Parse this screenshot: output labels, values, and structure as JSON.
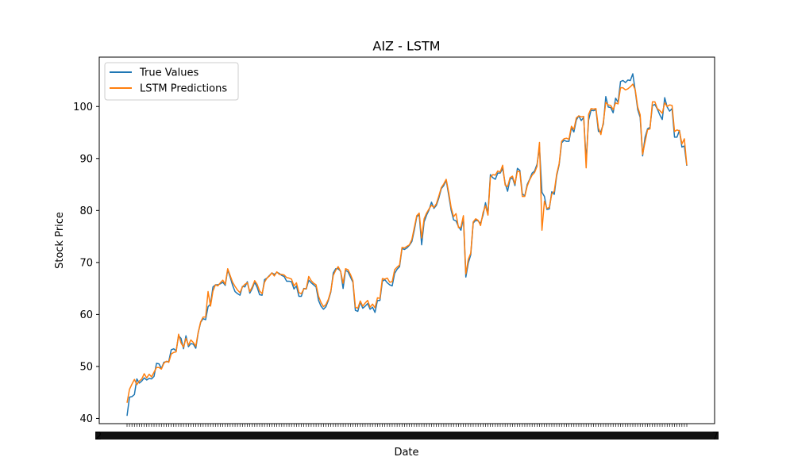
{
  "chart_data": {
    "type": "line",
    "title": "AIZ - LSTM",
    "xlabel": "Date",
    "ylabel": "Stock Price",
    "ylim": [
      39,
      109.5
    ],
    "yticks": [
      40,
      50,
      60,
      70,
      80,
      90,
      100
    ],
    "x_tick_labels_note": "Dense overlapping date tick labels",
    "x_first_tick": "2",
    "x_last_tick": "7",
    "legend": {
      "placement": "upper left",
      "entries": [
        "True Values",
        "LSTM Predictions"
      ]
    },
    "grid": false,
    "series": [
      {
        "name": "True Values",
        "color": "#1f77b4",
        "values": [
          40.5,
          44.1,
          44.2,
          44.6,
          47.6,
          46.8,
          47.2,
          47.8,
          47.4,
          47.7,
          47.6,
          48.1,
          50.6,
          50.5,
          49.6,
          50.8,
          50.9,
          51.0,
          53.2,
          53.4,
          53.0,
          55.9,
          55.4,
          53.4,
          55.9,
          53.8,
          54.4,
          54.3,
          53.5,
          56.5,
          58.5,
          59.2,
          59.0,
          61.5,
          62.0,
          65.3,
          65.7,
          65.7,
          65.9,
          66.2,
          65.6,
          68.6,
          67.2,
          65.6,
          64.4,
          64.0,
          63.7,
          65.4,
          65.3,
          66.3,
          64.1,
          65.0,
          66.2,
          65.2,
          63.8,
          63.7,
          66.7,
          67.0,
          67.5,
          68.0,
          67.7,
          68.1,
          67.9,
          67.5,
          67.3,
          66.4,
          66.4,
          66.3,
          64.9,
          65.5,
          63.5,
          63.5,
          65.0,
          64.9,
          66.6,
          66.1,
          65.7,
          65.3,
          62.7,
          61.6,
          61.0,
          61.5,
          62.7,
          64.3,
          68.0,
          68.8,
          68.8,
          68.3,
          65.0,
          68.5,
          68.2,
          67.2,
          66.2,
          60.8,
          60.6,
          62.4,
          61.2,
          61.6,
          62.1,
          61.0,
          61.4,
          60.4,
          62.7,
          62.7,
          66.4,
          66.7,
          66.1,
          65.7,
          65.5,
          67.9,
          68.7,
          69.2,
          72.7,
          72.5,
          72.8,
          73.3,
          74.0,
          76.2,
          78.8,
          79.2,
          73.4,
          77.8,
          79.1,
          80.1,
          81.6,
          80.4,
          81.0,
          82.4,
          84.2,
          84.8,
          85.8,
          83.0,
          80.1,
          78.2,
          78.0,
          76.9,
          76.2,
          78.6,
          67.2,
          69.9,
          71.5,
          77.6,
          78.1,
          78.0,
          77.5,
          79.1,
          81.5,
          79.3,
          86.9,
          86.3,
          86.0,
          87.2,
          87.2,
          88.1,
          85.2,
          83.7,
          86.0,
          86.3,
          84.8,
          88.1,
          87.7,
          83.2,
          82.8,
          85.0,
          86.0,
          87.2,
          87.6,
          88.9,
          92.1,
          83.5,
          82.7,
          80.2,
          80.3,
          83.6,
          83.1,
          86.7,
          88.8,
          93.0,
          93.5,
          93.3,
          93.3,
          95.9,
          95.1,
          97.4,
          98.2,
          97.3,
          97.9,
          89.6,
          97.4,
          99.3,
          99.2,
          99.4,
          95.2,
          95.2,
          96.6,
          101.9,
          99.9,
          99.8,
          98.8,
          101.6,
          100.8,
          104.8,
          105.0,
          104.6,
          105.1,
          105.0,
          106.3,
          103.0,
          99.4,
          97.9,
          90.5,
          94.1,
          95.7,
          96.0,
          100.2,
          100.4,
          99.5,
          98.4,
          97.5,
          101.7,
          99.9,
          99.1,
          99.6,
          94.1,
          94.1,
          95.4,
          92.2,
          92.4,
          88.6
        ]
      },
      {
        "name": "LSTM Predictions",
        "color": "#ff7f0e",
        "values": [
          43.0,
          45.6,
          46.6,
          47.5,
          46.5,
          47.2,
          47.6,
          48.6,
          47.8,
          48.5,
          48.0,
          48.9,
          49.8,
          49.8,
          49.5,
          50.6,
          51.0,
          50.8,
          52.4,
          52.7,
          52.8,
          56.2,
          54.5,
          53.7,
          55.4,
          54.1,
          55.1,
          54.6,
          53.9,
          56.6,
          58.6,
          59.5,
          59.5,
          64.4,
          61.6,
          64.5,
          65.7,
          65.5,
          66.1,
          66.6,
          65.8,
          68.8,
          67.5,
          66.2,
          65.4,
          64.7,
          64.2,
          65.3,
          65.8,
          66.1,
          64.4,
          65.3,
          66.5,
          65.8,
          64.5,
          64.0,
          66.2,
          67.0,
          67.4,
          68.0,
          67.4,
          68.2,
          67.7,
          67.7,
          67.6,
          67.1,
          67.0,
          66.8,
          65.5,
          66.1,
          64.2,
          64.0,
          64.9,
          65.0,
          67.3,
          66.5,
          66.0,
          65.7,
          63.5,
          62.3,
          61.5,
          61.9,
          62.9,
          64.5,
          67.5,
          68.5,
          69.2,
          68.3,
          66.0,
          68.8,
          68.6,
          67.7,
          66.5,
          61.4,
          61.2,
          62.6,
          61.6,
          62.2,
          62.7,
          61.4,
          62.0,
          61.3,
          63.2,
          63.1,
          66.9,
          66.8,
          67.0,
          66.2,
          66.3,
          68.6,
          69.1,
          69.5,
          72.9,
          72.8,
          73.1,
          73.4,
          74.4,
          76.7,
          79.0,
          79.5,
          74.7,
          78.4,
          79.5,
          80.3,
          81.0,
          80.6,
          81.3,
          82.8,
          84.4,
          85.1,
          86.0,
          83.5,
          80.6,
          78.8,
          79.4,
          76.7,
          76.8,
          79.0,
          67.8,
          70.6,
          71.8,
          77.8,
          78.4,
          78.1,
          77.1,
          79.6,
          80.9,
          79.1,
          86.4,
          86.9,
          86.8,
          87.6,
          87.4,
          88.7,
          84.9,
          84.6,
          86.3,
          86.6,
          85.1,
          87.6,
          87.4,
          82.7,
          82.7,
          84.7,
          85.9,
          86.8,
          87.3,
          88.5,
          93.1,
          76.2,
          81.8,
          80.4,
          80.6,
          83.2,
          83.7,
          87.0,
          89.0,
          93.3,
          93.8,
          93.9,
          93.7,
          96.2,
          95.6,
          97.8,
          98.2,
          98.0,
          98.1,
          88.2,
          98.5,
          99.6,
          99.5,
          99.6,
          95.9,
          94.6,
          97.0,
          100.8,
          100.3,
          100.2,
          99.4,
          100.7,
          100.5,
          103.6,
          103.6,
          103.2,
          103.4,
          103.8,
          104.3,
          103.2,
          99.9,
          98.4,
          90.8,
          93.2,
          95.5,
          95.7,
          100.9,
          100.9,
          99.6,
          99.2,
          98.7,
          100.7,
          100.0,
          100.3,
          100.2,
          95.2,
          95.5,
          95.3,
          92.8,
          93.8,
          88.7
        ]
      }
    ]
  }
}
